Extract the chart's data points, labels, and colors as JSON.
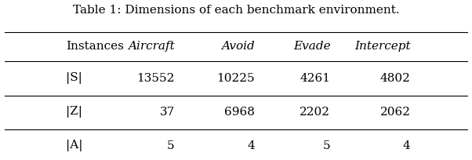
{
  "title": "Table 1: Dimensions of each benchmark environment.",
  "columns": [
    "Instances",
    "Aircraft",
    "Avoid",
    "Evade",
    "Intercept"
  ],
  "rows": [
    [
      "|S|",
      "13552",
      "10225",
      "4261",
      "4802"
    ],
    [
      "|Z|",
      "37",
      "6968",
      "2202",
      "2062"
    ],
    [
      "|A|",
      "5",
      "4",
      "5",
      "4"
    ]
  ],
  "col_italic": [
    false,
    true,
    true,
    true,
    true
  ],
  "row_label_italic": [
    false,
    false,
    false
  ],
  "bg_color": "#ffffff",
  "text_color": "#000000",
  "title_fontsize": 11,
  "table_fontsize": 11
}
